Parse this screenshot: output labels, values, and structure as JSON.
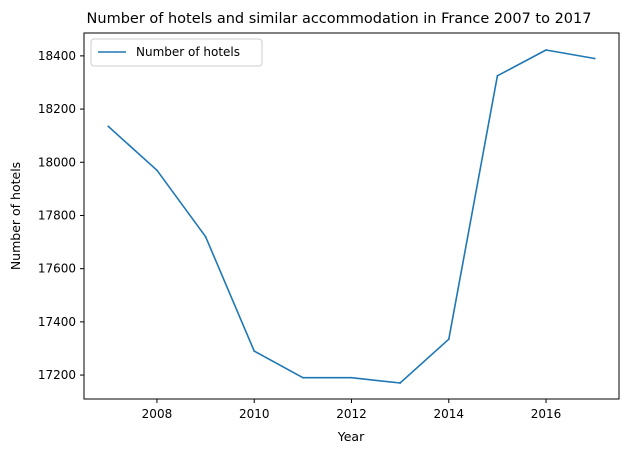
{
  "chart_data": {
    "type": "line",
    "title": "Number of hotels and similar accommodation in France 2007 to 2017",
    "xlabel": "Year",
    "ylabel": "Number of hotels",
    "x": [
      2007,
      2008,
      2009,
      2010,
      2011,
      2012,
      2013,
      2014,
      2015,
      2016,
      2017
    ],
    "series": [
      {
        "name": "Number of hotels",
        "values": [
          18135,
          17970,
          17720,
          17290,
          17190,
          17190,
          17170,
          17335,
          18325,
          18422,
          18390
        ],
        "color": "#1f77b4"
      }
    ],
    "xlim": [
      2006.5,
      2017.5
    ],
    "ylim": [
      17110,
      18486
    ],
    "xticks": [
      2008,
      2010,
      2012,
      2014,
      2016
    ],
    "yticks": [
      17200,
      17400,
      17600,
      17800,
      18000,
      18200,
      18400
    ],
    "grid": false,
    "legend": "top-left"
  }
}
